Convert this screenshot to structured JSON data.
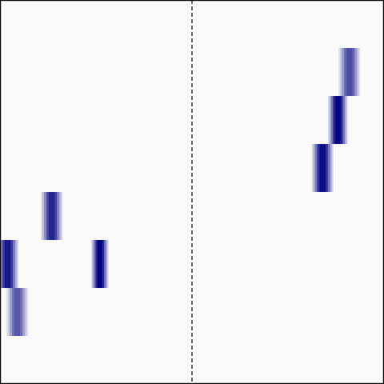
{
  "chart_data": {
    "type": "heatmap",
    "colors": {
      "background": "#fafafb",
      "frame": "#000000",
      "divider": "#000000",
      "cell_dark": "#000080",
      "cell_light": "#fafafb"
    },
    "grid": {
      "rows": 8,
      "cols": 2
    },
    "dashed_divider": true,
    "cells": [
      {
        "col": 1,
        "row": 1,
        "offset": 0.82,
        "spread": 0.1,
        "intensity": 0.7
      },
      {
        "col": 1,
        "row": 2,
        "offset": 0.76,
        "spread": 0.09,
        "intensity": 1.0
      },
      {
        "col": 1,
        "row": 3,
        "offset": 0.68,
        "spread": 0.1,
        "intensity": 0.95
      },
      {
        "col": 0,
        "row": 4,
        "offset": 0.27,
        "spread": 0.1,
        "intensity": 0.85
      },
      {
        "col": 0,
        "row": 5,
        "offset": 0.04,
        "spread": 0.1,
        "intensity": 0.9
      },
      {
        "col": 0,
        "row": 5,
        "offset": 0.52,
        "spread": 0.08,
        "intensity": 1.0
      },
      {
        "col": 0,
        "row": 6,
        "offset": 0.09,
        "spread": 0.1,
        "intensity": 0.65
      }
    ]
  }
}
